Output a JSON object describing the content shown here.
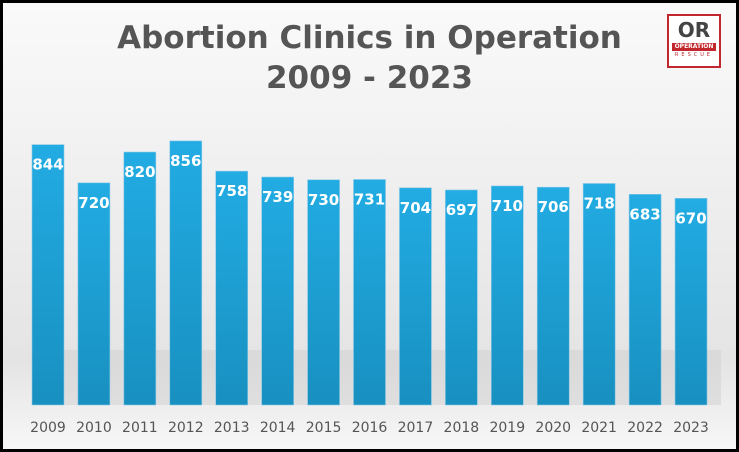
{
  "chart_data": {
    "type": "bar",
    "title": "Abortion Clinics in Operation",
    "subtitle": "2009 - 2023",
    "categories": [
      "2009",
      "2010",
      "2011",
      "2012",
      "2013",
      "2014",
      "2015",
      "2016",
      "2017",
      "2018",
      "2019",
      "2020",
      "2021",
      "2022",
      "2023"
    ],
    "values": [
      844,
      720,
      820,
      856,
      758,
      739,
      730,
      731,
      704,
      697,
      710,
      706,
      718,
      683,
      670
    ],
    "xlabel": "",
    "ylabel": "",
    "ylim": [
      0,
      900
    ],
    "grid": false,
    "legend": "none",
    "bar_color": "#1ea8df"
  },
  "logo": {
    "text": "OR",
    "line1": "OPERATION",
    "line2": "RESCUE"
  }
}
